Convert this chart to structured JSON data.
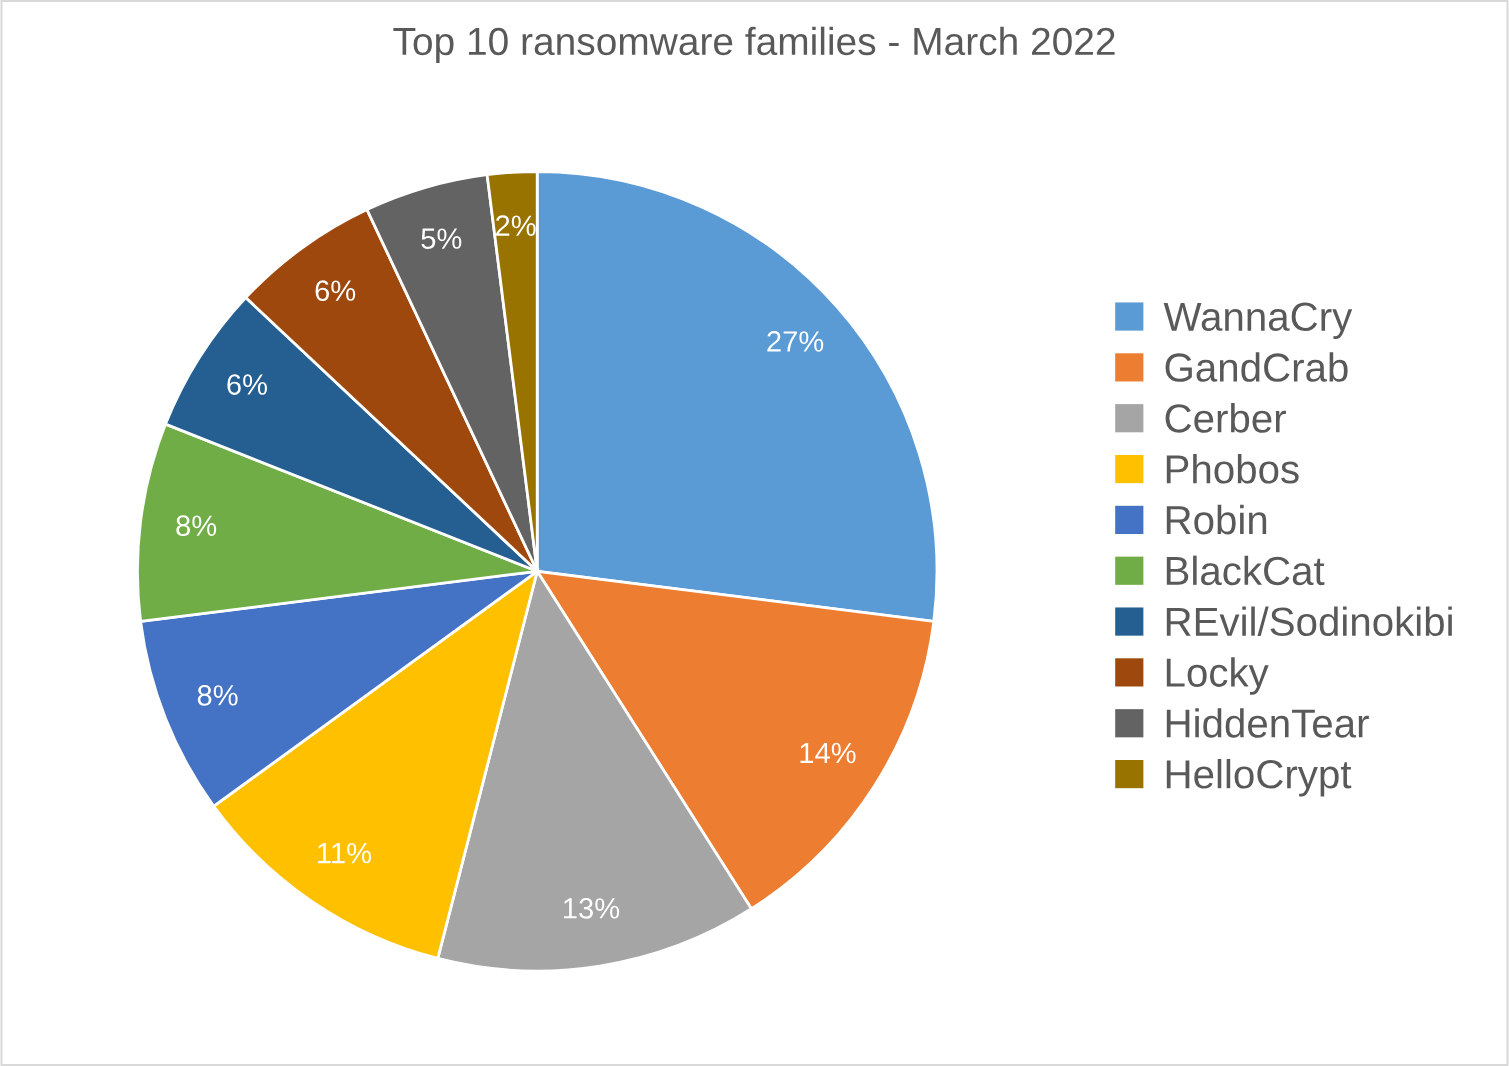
{
  "chart_data": {
    "type": "pie",
    "title": "Top 10 ransomware families - March 2022",
    "categories": [
      "WannaCry",
      "GandCrab",
      "Cerber",
      "Phobos",
      "Robin",
      "BlackCat",
      "REvil/Sodinokibi",
      "Locky",
      "HiddenTear",
      "HelloCrypt"
    ],
    "values": [
      27,
      14,
      13,
      11,
      8,
      8,
      6,
      6,
      5,
      2
    ],
    "value_labels": [
      "27%",
      "14%",
      "13%",
      "11%",
      "8%",
      "8%",
      "6%",
      "6%",
      "5%",
      "2%"
    ],
    "colors": [
      "#5b9bd5",
      "#ed7d31",
      "#a5a5a5",
      "#ffc000",
      "#4472c4",
      "#70ad47",
      "#255e91",
      "#9e480e",
      "#636363",
      "#997300"
    ],
    "legend": "right"
  }
}
